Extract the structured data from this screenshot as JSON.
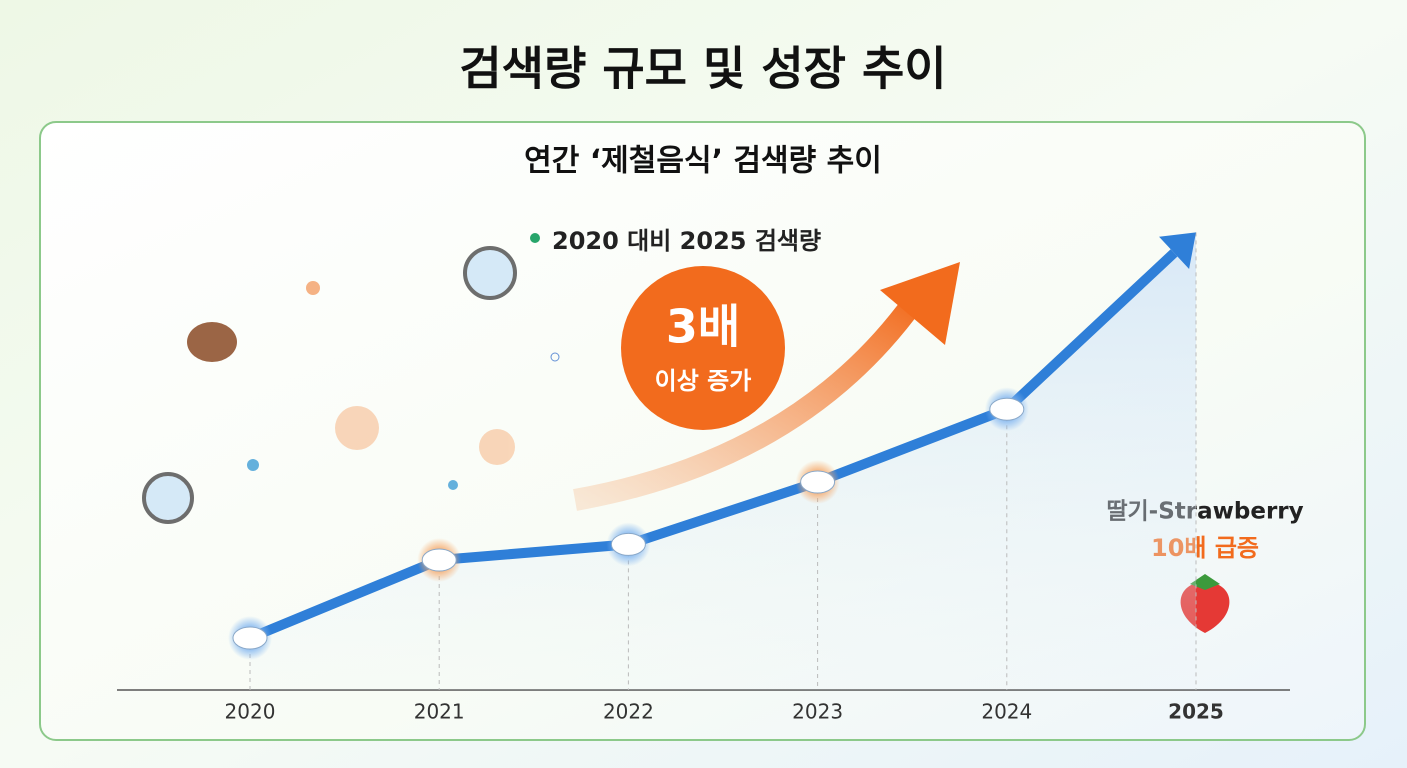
{
  "chart_data": {
    "type": "line",
    "title": "검색량 규모 및 성장 추이",
    "subtitle": "연간 ‘제철음식’ 검색량 추이",
    "annotation": "2020 대비 2025 검색량",
    "highlight": {
      "value": "3배",
      "label": "이상 증가"
    },
    "callout": {
      "title": "딸기-Strawberry",
      "text": "10배 급증"
    },
    "categories": [
      "2020",
      "2021",
      "2022",
      "2023",
      "2024",
      "2025"
    ],
    "series": [
      {
        "color": "#2f7fd8",
        "values": [
          1,
          2.5,
          2.8,
          4,
          5.4,
          8.8
        ]
      }
    ],
    "ylim": [
      0,
      9
    ]
  }
}
